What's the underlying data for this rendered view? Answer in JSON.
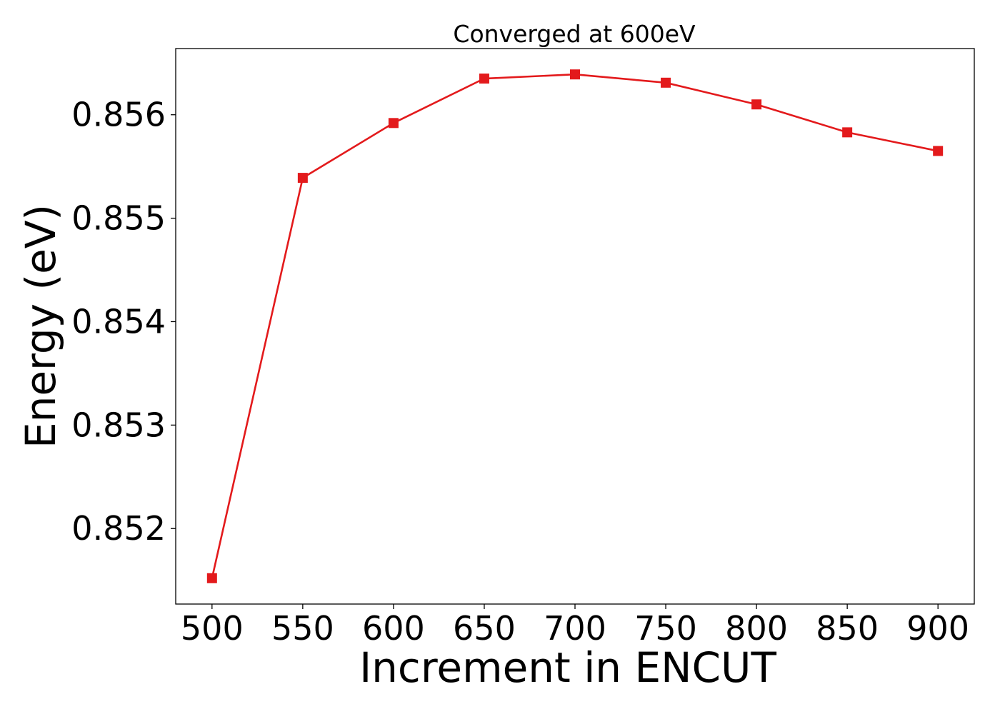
{
  "chart_data": {
    "type": "line",
    "title": "Converged at 600eV",
    "xlabel": "Increment in ENCUT",
    "ylabel": "Energy (eV)",
    "xlim": [
      480,
      920
    ],
    "ylim": [
      0.85127,
      0.85664
    ],
    "xticks": [
      500,
      550,
      600,
      650,
      700,
      750,
      800,
      850,
      900
    ],
    "yticks": [
      0.852,
      0.853,
      0.854,
      0.855,
      0.856
    ],
    "ytick_labels": [
      "0.852",
      "0.853",
      "0.854",
      "0.855",
      "0.856"
    ],
    "grid": false,
    "series": [
      {
        "color": "#e31a1c",
        "marker": "square",
        "x": [
          500,
          550,
          600,
          650,
          700,
          750,
          800,
          850,
          900
        ],
        "y": [
          0.85152,
          0.85539,
          0.85592,
          0.85635,
          0.85639,
          0.85631,
          0.8561,
          0.85583,
          0.85565
        ]
      }
    ]
  }
}
